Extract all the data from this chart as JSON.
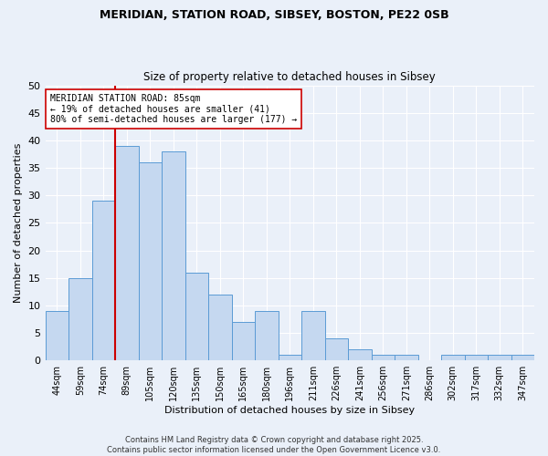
{
  "title1": "MERIDIAN, STATION ROAD, SIBSEY, BOSTON, PE22 0SB",
  "title2": "Size of property relative to detached houses in Sibsey",
  "xlabel": "Distribution of detached houses by size in Sibsey",
  "ylabel": "Number of detached properties",
  "categories": [
    "44sqm",
    "59sqm",
    "74sqm",
    "89sqm",
    "105sqm",
    "120sqm",
    "135sqm",
    "150sqm",
    "165sqm",
    "180sqm",
    "196sqm",
    "211sqm",
    "226sqm",
    "241sqm",
    "256sqm",
    "271sqm",
    "286sqm",
    "302sqm",
    "317sqm",
    "332sqm",
    "347sqm"
  ],
  "values": [
    9,
    15,
    29,
    39,
    36,
    38,
    16,
    12,
    7,
    9,
    1,
    9,
    4,
    2,
    1,
    1,
    0,
    1,
    1,
    1,
    1
  ],
  "bar_color": "#c5d8f0",
  "bar_edge_color": "#5b9bd5",
  "vline_x": 2.5,
  "vline_color": "#cc0000",
  "annotation_text": "MERIDIAN STATION ROAD: 85sqm\n← 19% of detached houses are smaller (41)\n80% of semi-detached houses are larger (177) →",
  "annotation_box_color": "#ffffff",
  "annotation_box_edge": "#cc0000",
  "ylim": [
    0,
    50
  ],
  "yticks": [
    0,
    5,
    10,
    15,
    20,
    25,
    30,
    35,
    40,
    45,
    50
  ],
  "footer": "Contains HM Land Registry data © Crown copyright and database right 2025.\nContains public sector information licensed under the Open Government Licence v3.0.",
  "bg_color": "#eaf0f9",
  "grid_color": "#ffffff"
}
